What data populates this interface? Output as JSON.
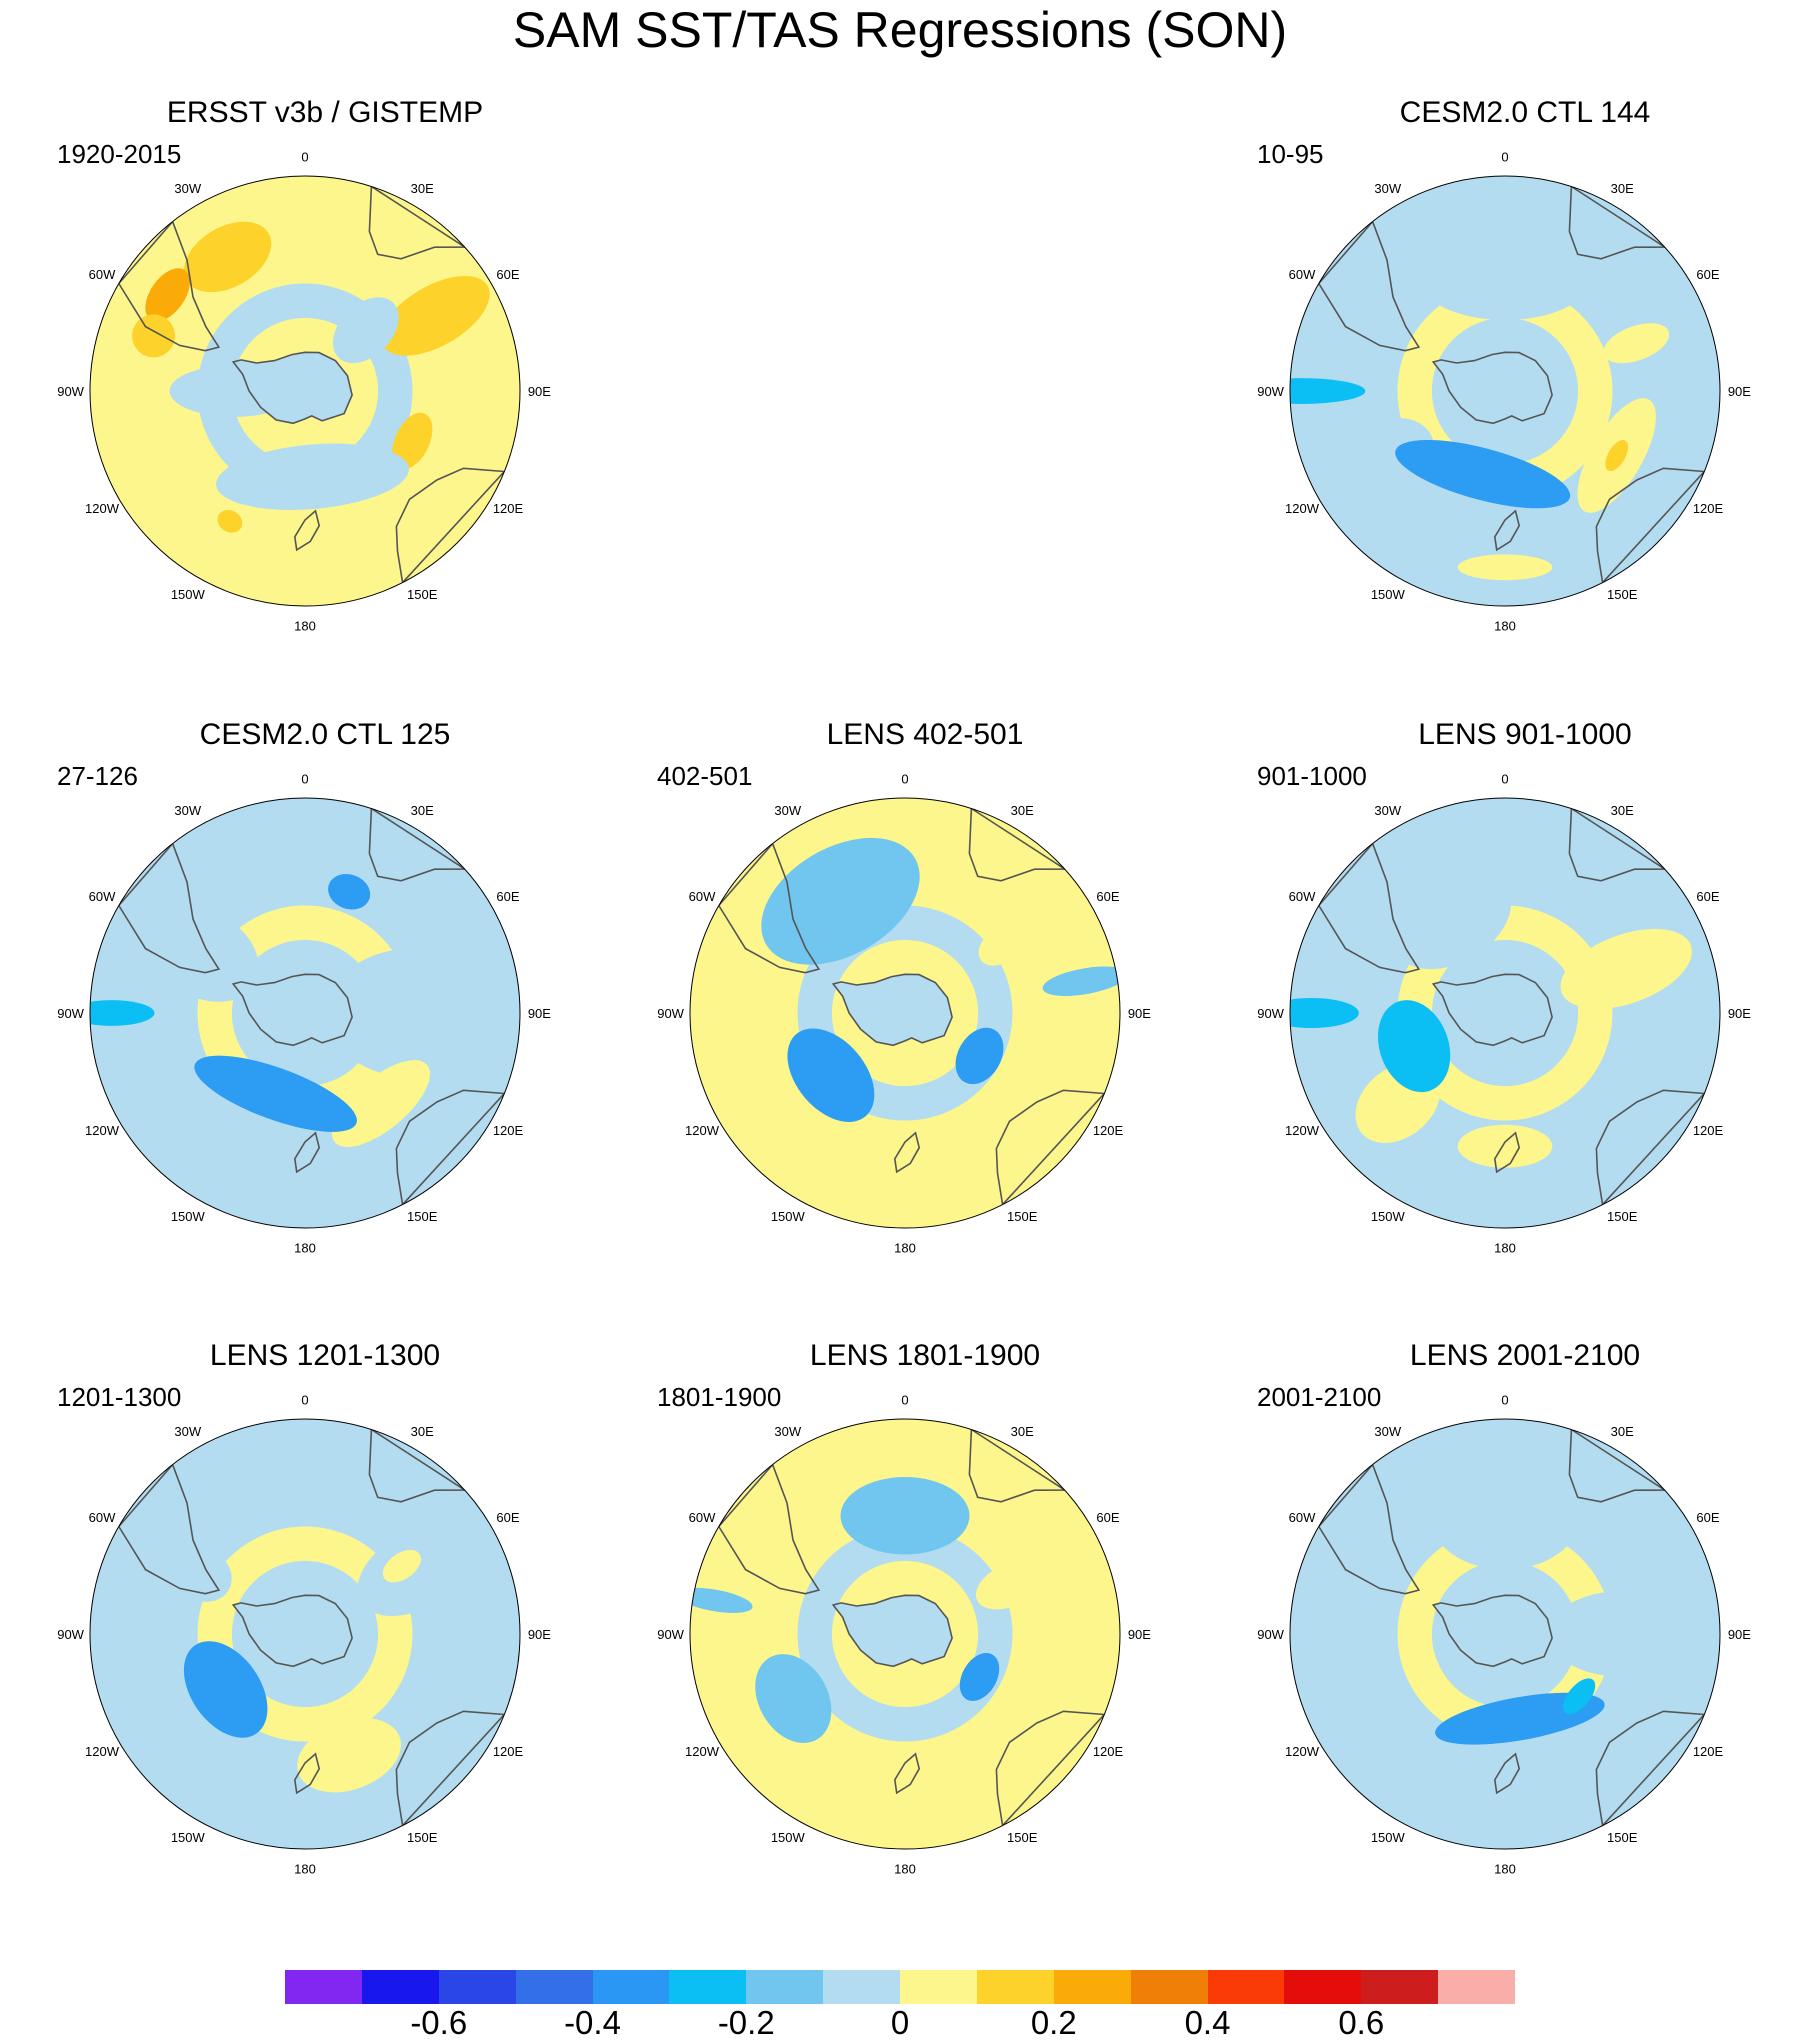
{
  "title": "SAM SST/TAS Regressions (SON)",
  "lon_labels": [
    "0",
    "30E",
    "60E",
    "90E",
    "120E",
    "150E",
    "180",
    "150W",
    "120W",
    "90W",
    "60W",
    "30W"
  ],
  "panels": [
    {
      "id": "ersst",
      "title": "ERSST v3b / GISTEMP",
      "period": "1920-2015",
      "row": 0,
      "col": 0,
      "base": "warm",
      "blobs": [
        {
          "a": 330,
          "r": 0.72,
          "rx": 0.22,
          "ry": 0.14,
          "c": 5
        },
        {
          "a": 305,
          "r": 0.78,
          "rx": 0.14,
          "ry": 0.08,
          "c": 6
        },
        {
          "a": 60,
          "r": 0.7,
          "rx": 0.14,
          "ry": 0.28,
          "c": 5
        },
        {
          "a": 115,
          "r": 0.55,
          "rx": 0.14,
          "ry": 0.08,
          "c": 5
        },
        {
          "a": 175,
          "r": 0.4,
          "rx": 0.45,
          "ry": 0.15,
          "c": 3
        },
        {
          "a": 270,
          "r": 0.33,
          "rx": 0.12,
          "ry": 0.3,
          "c": 3
        },
        {
          "a": 45,
          "r": 0.4,
          "rx": 0.12,
          "ry": 0.18,
          "c": 3
        },
        {
          "a": 290,
          "r": 0.75,
          "rx": 0.1,
          "ry": 0.1,
          "c": 5
        },
        {
          "a": 210,
          "r": 0.7,
          "rx": 0.06,
          "ry": 0.05,
          "c": 5
        }
      ]
    },
    {
      "id": "ctl144",
      "title": "CESM2.0 CTL 144",
      "period": "10-95",
      "row": 0,
      "col": 2,
      "base": "cool",
      "blobs": [
        {
          "a": 0,
          "r": 0.55,
          "rx": 0.42,
          "ry": 0.22,
          "c": 3
        },
        {
          "a": 120,
          "r": 0.6,
          "rx": 0.3,
          "ry": 0.12,
          "c": 4
        },
        {
          "a": 240,
          "r": 0.65,
          "rx": 0.18,
          "ry": 0.25,
          "c": 3
        },
        {
          "a": 70,
          "r": 0.65,
          "rx": 0.08,
          "ry": 0.16,
          "c": 4
        },
        {
          "a": 180,
          "r": 0.82,
          "rx": 0.22,
          "ry": 0.06,
          "c": 4
        },
        {
          "a": 195,
          "r": 0.4,
          "rx": 0.42,
          "ry": 0.12,
          "c": 1
        },
        {
          "a": 270,
          "r": 0.95,
          "rx": 0.06,
          "ry": 0.3,
          "c": 0
        },
        {
          "a": 120,
          "r": 0.6,
          "rx": 0.08,
          "ry": 0.04,
          "c": 5
        }
      ]
    },
    {
      "id": "ctl125",
      "title": "CESM2.0 CTL 125",
      "period": "27-126",
      "row": 1,
      "col": 0,
      "base": "cool",
      "blobs": [
        {
          "a": 90,
          "r": 0.5,
          "rx": 0.3,
          "ry": 0.4,
          "c": 3
        },
        {
          "a": 140,
          "r": 0.55,
          "rx": 0.28,
          "ry": 0.12,
          "c": 4
        },
        {
          "a": 200,
          "r": 0.4,
          "rx": 0.4,
          "ry": 0.12,
          "c": 1
        },
        {
          "a": 300,
          "r": 0.55,
          "rx": 0.2,
          "ry": 0.28,
          "c": 3
        },
        {
          "a": 20,
          "r": 0.6,
          "rx": 0.1,
          "ry": 0.08,
          "c": 1
        },
        {
          "a": 270,
          "r": 0.9,
          "rx": 0.06,
          "ry": 0.2,
          "c": 0
        }
      ]
    },
    {
      "id": "lens402",
      "title": "LENS 402-501",
      "period": "402-501",
      "row": 1,
      "col": 1,
      "base": "warm",
      "blobs": [
        {
          "a": 330,
          "r": 0.6,
          "rx": 0.4,
          "ry": 0.25,
          "c": 2
        },
        {
          "a": 230,
          "r": 0.45,
          "rx": 0.25,
          "ry": 0.16,
          "c": 1
        },
        {
          "a": 120,
          "r": 0.4,
          "rx": 0.14,
          "ry": 0.1,
          "c": 1
        },
        {
          "a": 80,
          "r": 0.85,
          "rx": 0.06,
          "ry": 0.2,
          "c": 2
        },
        {
          "a": 180,
          "r": 0.62,
          "rx": 0.2,
          "ry": 0.08,
          "c": 4
        },
        {
          "a": 55,
          "r": 0.55,
          "rx": 0.08,
          "ry": 0.12,
          "c": 4
        }
      ]
    },
    {
      "id": "lens901",
      "title": "LENS 901-1000",
      "period": "901-1000",
      "row": 1,
      "col": 2,
      "base": "cool",
      "blobs": [
        {
          "a": 70,
          "r": 0.6,
          "rx": 0.16,
          "ry": 0.32,
          "c": 4
        },
        {
          "a": 230,
          "r": 0.65,
          "rx": 0.16,
          "ry": 0.22,
          "c": 4
        },
        {
          "a": 180,
          "r": 0.62,
          "rx": 0.22,
          "ry": 0.1,
          "c": 4
        },
        {
          "a": 330,
          "r": 0.5,
          "rx": 0.3,
          "ry": 0.2,
          "c": 3
        },
        {
          "a": 250,
          "r": 0.45,
          "rx": 0.22,
          "ry": 0.16,
          "c": 0
        },
        {
          "a": 270,
          "r": 0.9,
          "rx": 0.07,
          "ry": 0.22,
          "c": 0
        }
      ]
    },
    {
      "id": "lens1201",
      "title": "LENS 1201-1300",
      "period": "1201-1300",
      "row": 2,
      "col": 0,
      "base": "cool",
      "blobs": [
        {
          "a": 60,
          "r": 0.6,
          "rx": 0.18,
          "ry": 0.3,
          "c": 3
        },
        {
          "a": 160,
          "r": 0.6,
          "rx": 0.25,
          "ry": 0.16,
          "c": 4
        },
        {
          "a": 235,
          "r": 0.45,
          "rx": 0.25,
          "ry": 0.16,
          "c": 1
        },
        {
          "a": 300,
          "r": 0.55,
          "rx": 0.12,
          "ry": 0.14,
          "c": 3
        },
        {
          "a": 55,
          "r": 0.55,
          "rx": 0.06,
          "ry": 0.1,
          "c": 4
        }
      ]
    },
    {
      "id": "lens1801",
      "title": "LENS 1801-1900",
      "period": "1801-1900",
      "row": 2,
      "col": 1,
      "base": "warm",
      "blobs": [
        {
          "a": 0,
          "r": 0.55,
          "rx": 0.3,
          "ry": 0.18,
          "c": 2
        },
        {
          "a": 240,
          "r": 0.6,
          "rx": 0.22,
          "ry": 0.16,
          "c": 2
        },
        {
          "a": 120,
          "r": 0.4,
          "rx": 0.12,
          "ry": 0.08,
          "c": 1
        },
        {
          "a": 65,
          "r": 0.55,
          "rx": 0.1,
          "ry": 0.18,
          "c": 4
        },
        {
          "a": 185,
          "r": 0.7,
          "rx": 0.1,
          "ry": 0.06,
          "c": 4
        },
        {
          "a": 280,
          "r": 0.9,
          "rx": 0.05,
          "ry": 0.18,
          "c": 2
        }
      ]
    },
    {
      "id": "lens2001",
      "title": "LENS 2001-2100",
      "period": "2001-2100",
      "row": 2,
      "col": 2,
      "base": "cool",
      "blobs": [
        {
          "a": 0,
          "r": 0.55,
          "rx": 0.35,
          "ry": 0.25,
          "c": 3
        },
        {
          "a": 90,
          "r": 0.55,
          "rx": 0.2,
          "ry": 0.35,
          "c": 3
        },
        {
          "a": 180,
          "r": 0.6,
          "rx": 0.3,
          "ry": 0.12,
          "c": 3
        },
        {
          "a": 170,
          "r": 0.4,
          "rx": 0.4,
          "ry": 0.1,
          "c": 1
        },
        {
          "a": 130,
          "r": 0.45,
          "rx": 0.1,
          "ry": 0.05,
          "c": 0
        }
      ]
    }
  ],
  "palette": [
    "#0bbff5",
    "#2d9cf3",
    "#70c6ef",
    "#b3dcf0",
    "#fcf68c",
    "#fcd22b",
    "#faab07",
    "#f07f08"
  ],
  "colorbar": {
    "colors": [
      "#8227f1",
      "#1717ee",
      "#2a46e7",
      "#336fe9",
      "#2a97f4",
      "#0bbff5",
      "#70c6ef",
      "#b3dcf0",
      "#fcf68c",
      "#fcd22b",
      "#faab07",
      "#f07f08",
      "#fa3b07",
      "#e50c0c",
      "#cd1d1d",
      "#faaeaa"
    ],
    "labels": [
      "-0.6",
      "-0.4",
      "-0.2",
      "0",
      "0.2",
      "0.4",
      "0.6"
    ],
    "label_values": [
      -0.6,
      -0.4,
      -0.2,
      0,
      0.2,
      0.4,
      0.6
    ]
  }
}
